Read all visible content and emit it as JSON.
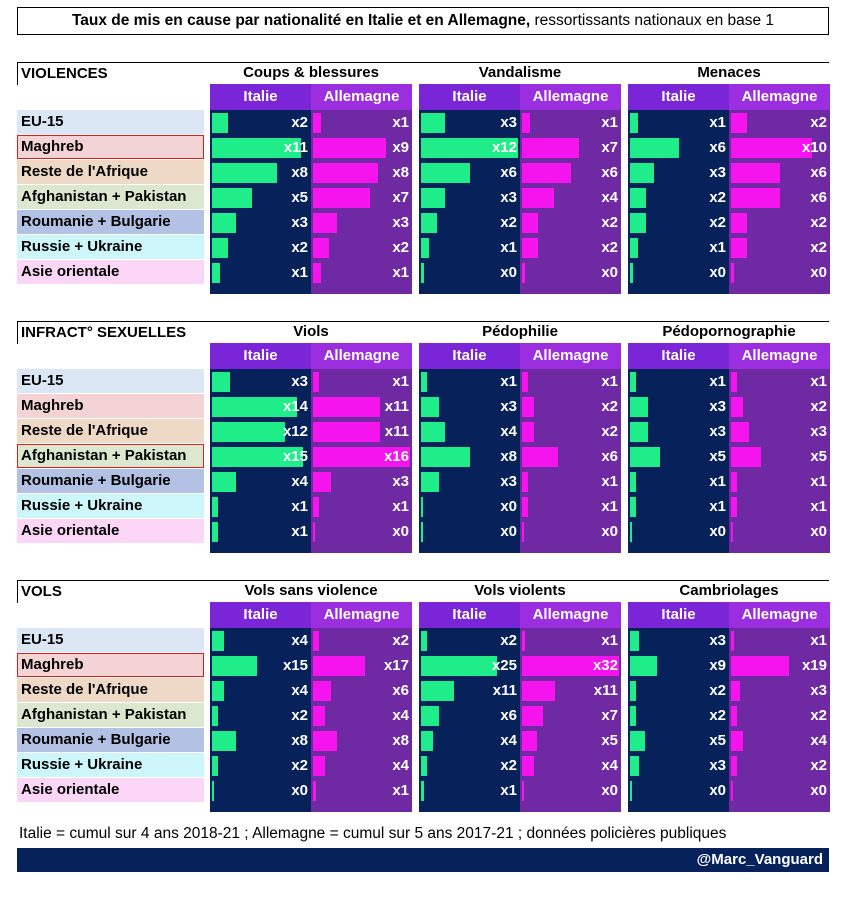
{
  "header": {
    "title_bold": "Taux de mis en cause par nationalité en Italie et en Allemagne,",
    "title_rest": " ressortissants nationaux en base 1"
  },
  "footer": {
    "note": "Italie = cumul sur 4 ans 2018-21 ; Allemagne = cumul sur 5 ans 2017-21 ; données policières publiques",
    "credit": "@Marc_Vanguard"
  },
  "colors": {
    "italy_bar": "#1eed8a",
    "germany_bar": "#f513ee",
    "italy_bg": "#07215a",
    "germany_bg": "#6f2aa3"
  },
  "country_labels": [
    "Italie",
    "Allemagne"
  ],
  "chart_data": [
    {
      "type": "bar",
      "section": "VIOLENCES",
      "categories": [
        "EU-15",
        "Maghreb",
        "Reste de l'Afrique",
        "Afghanistan + Pakistan",
        "Roumanie + Bulgarie",
        "Russie + Ukraine",
        "Asie orientale"
      ],
      "row_colors": [
        "#dbe7f4",
        "#f3d3d3",
        "#eed9c6",
        "#dbe8cf",
        "#b3c1e4",
        "#ccf6f9",
        "#fcd6f6"
      ],
      "highlight": [
        1
      ],
      "panels": [
        {
          "title": "Coups & blessures",
          "italy": {
            "values": [
              2,
              11,
              8,
              5,
              3,
              2,
              1
            ],
            "labels": [
              "x2",
              "x11",
              "x8",
              "x5",
              "x3",
              "x2",
              "x1"
            ]
          },
          "germany": {
            "values": [
              1,
              9,
              8,
              7,
              3,
              2,
              1
            ],
            "labels": [
              "x1",
              "x9",
              "x8",
              "x7",
              "x3",
              "x2",
              "x1"
            ]
          }
        },
        {
          "title": "Vandalisme",
          "italy": {
            "values": [
              3,
              12,
              6,
              3,
              2,
              1,
              0.4
            ],
            "labels": [
              "x3",
              "x12",
              "x6",
              "x3",
              "x2",
              "x1",
              "x0"
            ]
          },
          "germany": {
            "values": [
              1,
              7,
              6,
              4,
              2,
              2,
              0.4
            ],
            "labels": [
              "x1",
              "x7",
              "x6",
              "x4",
              "x2",
              "x2",
              "x0"
            ]
          }
        },
        {
          "title": "Menaces",
          "italy": {
            "values": [
              1,
              6,
              3,
              2,
              2,
              1,
              0.4
            ],
            "labels": [
              "x1",
              "x6",
              "x3",
              "x2",
              "x2",
              "x1",
              "x0"
            ]
          },
          "germany": {
            "values": [
              2,
              10,
              6,
              6,
              2,
              2,
              0.4
            ],
            "labels": [
              "x2",
              "x10",
              "x6",
              "x6",
              "x2",
              "x2",
              "x0"
            ]
          }
        }
      ]
    },
    {
      "type": "bar",
      "section": "INFRACT° SEXUELLES",
      "categories": [
        "EU-15",
        "Maghreb",
        "Reste de l'Afrique",
        "Afghanistan + Pakistan",
        "Roumanie + Bulgarie",
        "Russie + Ukraine",
        "Asie orientale"
      ],
      "row_colors": [
        "#dbe7f4",
        "#f3d3d3",
        "#eed9c6",
        "#dbe8cf",
        "#b3c1e4",
        "#ccf6f9",
        "#fcd6f6"
      ],
      "highlight": [
        3
      ],
      "panels": [
        {
          "title": "Viols",
          "italy": {
            "values": [
              3,
              14,
              12,
              15,
              4,
              1,
              1
            ],
            "labels": [
              "x3",
              "x14",
              "x12",
              "x15",
              "x4",
              "x1",
              "x1"
            ]
          },
          "germany": {
            "values": [
              1,
              11,
              11,
              16,
              3,
              1,
              0.4
            ],
            "labels": [
              "x1",
              "x11",
              "x11",
              "x16",
              "x3",
              "x1",
              "x0"
            ]
          }
        },
        {
          "title": "Pédophilie",
          "italy": {
            "values": [
              1,
              3,
              4,
              8,
              3,
              0.4,
              0.4
            ],
            "labels": [
              "x1",
              "x3",
              "x4",
              "x8",
              "x3",
              "x0",
              "x0"
            ]
          },
          "germany": {
            "values": [
              1,
              2,
              2,
              6,
              1,
              1,
              0.4
            ],
            "labels": [
              "x1",
              "x2",
              "x2",
              "x6",
              "x1",
              "x1",
              "x0"
            ]
          }
        },
        {
          "title": "Pédopornographie",
          "italy": {
            "values": [
              1,
              3,
              3,
              5,
              1,
              1,
              0.4
            ],
            "labels": [
              "x1",
              "x3",
              "x3",
              "x5",
              "x1",
              "x1",
              "x0"
            ]
          },
          "germany": {
            "values": [
              1,
              2,
              3,
              5,
              1,
              1,
              0.4
            ],
            "labels": [
              "x1",
              "x2",
              "x3",
              "x5",
              "x1",
              "x1",
              "x0"
            ]
          }
        }
      ]
    },
    {
      "type": "bar",
      "section": "VOLS",
      "categories": [
        "EU-15",
        "Maghreb",
        "Reste de l'Afrique",
        "Afghanistan + Pakistan",
        "Roumanie + Bulgarie",
        "Russie + Ukraine",
        "Asie orientale"
      ],
      "row_colors": [
        "#dbe7f4",
        "#f3d3d3",
        "#eed9c6",
        "#dbe8cf",
        "#b3c1e4",
        "#ccf6f9",
        "#fcd6f6"
      ],
      "highlight": [
        1
      ],
      "panels": [
        {
          "title": "Vols sans violence",
          "italy": {
            "values": [
              4,
              15,
              4,
              2,
              8,
              2,
              0.4
            ],
            "labels": [
              "x4",
              "x15",
              "x4",
              "x2",
              "x8",
              "x2",
              "x0"
            ]
          },
          "germany": {
            "values": [
              2,
              17,
              6,
              4,
              8,
              4,
              1
            ],
            "labels": [
              "x2",
              "x17",
              "x6",
              "x4",
              "x8",
              "x4",
              "x1"
            ]
          }
        },
        {
          "title": "Vols violents",
          "italy": {
            "values": [
              2,
              25,
              11,
              6,
              4,
              2,
              1
            ],
            "labels": [
              "x2",
              "x25",
              "x11",
              "x6",
              "x4",
              "x2",
              "x1"
            ]
          },
          "germany": {
            "values": [
              1,
              32,
              11,
              7,
              5,
              4,
              0.4
            ],
            "labels": [
              "x1",
              "x32",
              "x11",
              "x7",
              "x5",
              "x4",
              "x0"
            ]
          }
        },
        {
          "title": "Cambriolages",
          "italy": {
            "values": [
              3,
              9,
              2,
              2,
              5,
              3,
              0.4
            ],
            "labels": [
              "x3",
              "x9",
              "x2",
              "x2",
              "x5",
              "x3",
              "x0"
            ]
          },
          "germany": {
            "values": [
              1,
              19,
              3,
              2,
              4,
              2,
              0.4
            ],
            "labels": [
              "x1",
              "x19",
              "x3",
              "x2",
              "x4",
              "x2",
              "x0"
            ]
          }
        }
      ]
    }
  ]
}
